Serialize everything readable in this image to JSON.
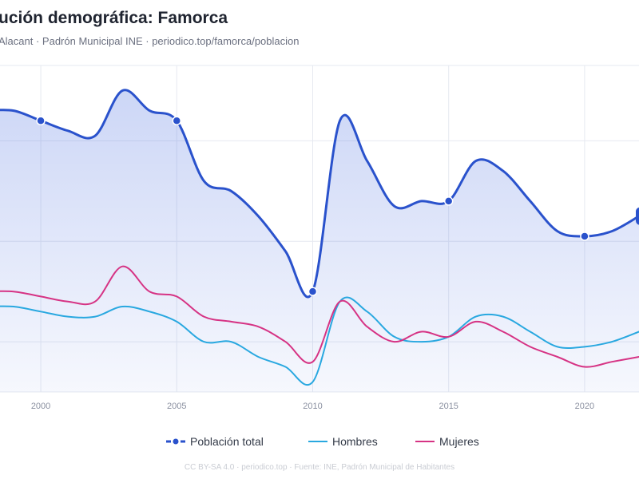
{
  "header": {
    "title": "ución demográfica: Famorca",
    "subtitle": "Alacant · Padrón Municipal INE · periodico.top/famorca/poblacion"
  },
  "footer": {
    "text": "CC BY-SA 4.0 · periodico.top · Fuente: INE, Padrón Municipal de Habitantes"
  },
  "colors": {
    "total": "#2a52cc",
    "hombres": "#29a8e0",
    "mujeres": "#d63384",
    "grid": "#e6e9f0",
    "area": "#4a6ee0"
  },
  "chart_data": {
    "type": "line",
    "x_ticks": [
      2000,
      2005,
      2010,
      2015,
      2020
    ],
    "xlim": [
      1998.5,
      2022.0
    ],
    "ylim": [
      30,
      95
    ],
    "x": [
      1998,
      1999,
      2000,
      2001,
      2002,
      2003,
      2004,
      2005,
      2006,
      2007,
      2008,
      2009,
      2010,
      2011,
      2012,
      2013,
      2014,
      2015,
      2016,
      2017,
      2018,
      2019,
      2020,
      2021,
      2022
    ],
    "series": [
      {
        "name": "Población total",
        "key": "total",
        "values": [
          86,
          86,
          84,
          82,
          81,
          90,
          86,
          84,
          72,
          70,
          65,
          58,
          50,
          84,
          76,
          67,
          68,
          68,
          76,
          74,
          68,
          62,
          61,
          62,
          65
        ]
      },
      {
        "name": "Hombres",
        "key": "hombres",
        "values": [
          47,
          47,
          46,
          45,
          45,
          47,
          46,
          44,
          40,
          40,
          37,
          35,
          32,
          48,
          46,
          41,
          40,
          41,
          45,
          45,
          42,
          39,
          39,
          40,
          42
        ]
      },
      {
        "name": "Mujeres",
        "key": "mujeres",
        "values": [
          50,
          50,
          49,
          48,
          48,
          55,
          50,
          49,
          45,
          44,
          43,
          40,
          36,
          48,
          43,
          40,
          42,
          41,
          44,
          42,
          39,
          37,
          35,
          36,
          37
        ]
      }
    ],
    "markers_total": [
      {
        "x": 2000,
        "y": 84
      },
      {
        "x": 2005,
        "y": 84
      },
      {
        "x": 2010,
        "y": 50
      },
      {
        "x": 2015,
        "y": 68
      },
      {
        "x": 2020,
        "y": 61
      }
    ],
    "legend": [
      {
        "key": "total",
        "label": "Población total"
      },
      {
        "key": "hombres",
        "label": "Hombres"
      },
      {
        "key": "mujeres",
        "label": "Mujeres"
      }
    ],
    "grid": true,
    "legend_position": "bottom"
  }
}
